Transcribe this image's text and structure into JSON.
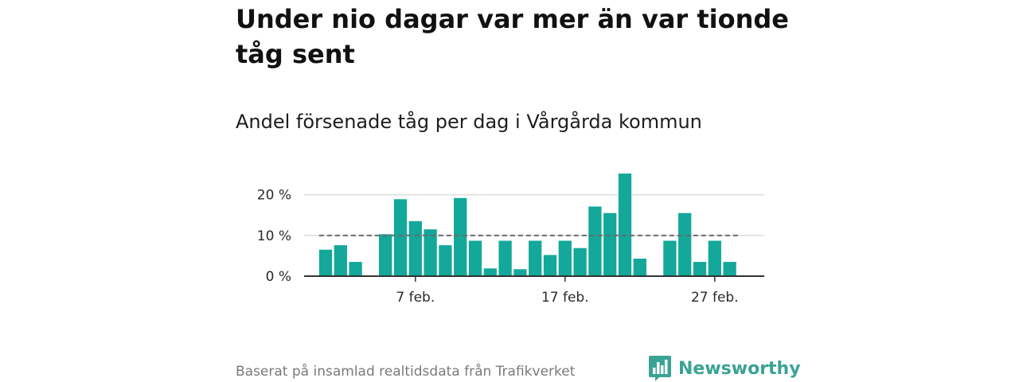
{
  "headline": "Under nio dagar var mer än var tionde tåg sent",
  "subtitle": "Andel försenade tåg per dag i Vårgårda kommun",
  "source": "Baserat på insamlad realtidsdata från Trafikverket",
  "brand": {
    "name": "Newsworthy",
    "icon": "newsworthy-logo-icon"
  },
  "colors": {
    "bar": "#13a899",
    "reference_line": "#6b6b6b",
    "grid": "#dddddd",
    "axis": "#333333",
    "brand": "#3aa394"
  },
  "chart_data": {
    "type": "bar",
    "title": "Under nio dagar var mer än var tionde tåg sent",
    "subtitle": "Andel försenade tåg per dag i Vårgårda kommun",
    "x": [
      "1 feb.",
      "2 feb.",
      "3 feb.",
      "4 feb.",
      "5 feb.",
      "6 feb.",
      "7 feb.",
      "8 feb.",
      "9 feb.",
      "10 feb.",
      "11 feb.",
      "12 feb.",
      "13 feb.",
      "14 feb.",
      "15 feb.",
      "16 feb.",
      "17 feb.",
      "18 feb.",
      "19 feb.",
      "20 feb.",
      "21 feb.",
      "22 feb.",
      "23 feb.",
      "24 feb.",
      "25 feb.",
      "26 feb.",
      "27 feb.",
      "28 feb."
    ],
    "values": [
      6.5,
      7.6,
      3.5,
      null,
      10.3,
      18.9,
      13.5,
      11.5,
      7.6,
      19.2,
      8.7,
      1.9,
      8.7,
      1.7,
      8.7,
      5.2,
      8.7,
      6.9,
      17.1,
      15.5,
      25.2,
      4.3,
      null,
      8.7,
      15.5,
      3.5,
      8.7,
      3.5
    ],
    "x_tick_labels": [
      "7 feb.",
      "17 feb.",
      "27 feb."
    ],
    "y_ticks": [
      0,
      10,
      20
    ],
    "y_tick_labels": [
      "0 %",
      "10 %",
      "20 %"
    ],
    "ylim": [
      0,
      26
    ],
    "unit": "%",
    "reference_line": 10,
    "grid": true
  }
}
